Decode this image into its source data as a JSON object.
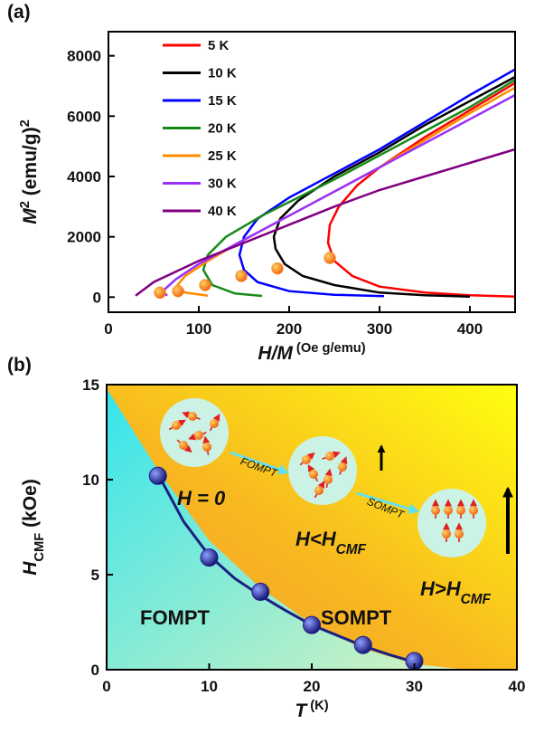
{
  "chart_data": [
    {
      "type": "line",
      "panel_label": "(a)",
      "xlabel": [
        "H/M",
        " (Oe g/emu)"
      ],
      "ylabel": [
        "M",
        "2",
        " (emu/g)",
        "2"
      ],
      "xlim": [
        0,
        450
      ],
      "xticks": [
        0,
        100,
        200,
        300,
        400
      ],
      "ylim": [
        -500,
        8800
      ],
      "yticks": [
        0,
        2000,
        4000,
        6000,
        8000
      ],
      "legend": "upper left",
      "series": [
        {
          "name": "5 K",
          "color": "#ff0000",
          "x": [
            450,
            400,
            350,
            300,
            270,
            250,
            243,
            245,
            255,
            275,
            300,
            350,
            400,
            450
          ],
          "y": [
            20,
            60,
            150,
            350,
            700,
            1200,
            1800,
            2400,
            3000,
            3700,
            4300,
            5300,
            6200,
            7100
          ]
        },
        {
          "name": "10 K",
          "color": "#000000",
          "x": [
            400,
            350,
            300,
            250,
            215,
            195,
            185,
            183,
            190,
            210,
            250,
            300,
            350,
            400,
            450
          ],
          "y": [
            20,
            60,
            150,
            400,
            700,
            1100,
            1600,
            2000,
            2600,
            3200,
            4000,
            4800,
            5700,
            6500,
            7300
          ]
        },
        {
          "name": "15 K",
          "color": "#0000ff",
          "x": [
            305,
            250,
            200,
            165,
            150,
            145,
            150,
            165,
            200,
            250,
            300,
            350,
            400,
            450
          ],
          "y": [
            30,
            80,
            200,
            500,
            900,
            1400,
            2000,
            2600,
            3300,
            4100,
            4900,
            5800,
            6700,
            7550
          ]
        },
        {
          "name": "20 K",
          "color": "#168a16",
          "x": [
            170,
            140,
            115,
            105,
            110,
            130,
            170,
            250,
            300,
            350,
            400,
            450
          ],
          "y": [
            40,
            120,
            400,
            900,
            1400,
            2000,
            2700,
            3900,
            4700,
            5500,
            6300,
            7200
          ]
        },
        {
          "name": "25 K",
          "color": "#ff8c00",
          "x": [
            110,
            85,
            75,
            85,
            110,
            150,
            200,
            250,
            300,
            350,
            400,
            450
          ],
          "y": [
            50,
            150,
            350,
            700,
            1200,
            1900,
            2700,
            3500,
            4300,
            5200,
            6100,
            6950
          ]
        },
        {
          "name": "30 K",
          "color": "#9b30ff",
          "x": [
            65,
            60,
            75,
            100,
            150,
            200,
            250,
            300,
            350,
            400,
            450
          ],
          "y": [
            50,
            200,
            600,
            1100,
            1900,
            2700,
            3500,
            4300,
            5100,
            5900,
            6700
          ]
        },
        {
          "name": "40 K",
          "color": "#800080",
          "x": [
            30,
            50,
            100,
            150,
            200,
            250,
            300,
            350,
            400,
            450
          ],
          "y": [
            50,
            500,
            1200,
            1800,
            2400,
            3000,
            3550,
            4000,
            4450,
            4900
          ]
        }
      ],
      "markers": {
        "color": "#f39020",
        "x": [
          245,
          187,
          147,
          107,
          77,
          57
        ],
        "y": [
          1300,
          950,
          700,
          400,
          200,
          150
        ]
      }
    },
    {
      "type": "scatter",
      "panel_label": "(b)",
      "xlabel": [
        "T",
        " (K)"
      ],
      "ylabel": [
        "H",
        "CMF",
        " (kOe)"
      ],
      "xlim": [
        0,
        40
      ],
      "xticks": [
        0,
        10,
        20,
        30,
        40
      ],
      "ylim": [
        0,
        15
      ],
      "yticks": [
        0,
        5,
        10,
        15
      ],
      "points": {
        "color": "#1c1c8a",
        "x": [
          5,
          10,
          15,
          20,
          25,
          30
        ],
        "y": [
          10.2,
          5.9,
          4.1,
          2.35,
          1.3,
          0.45
        ]
      },
      "fit": {
        "color": "#1a2080",
        "x": [
          5,
          7.5,
          10,
          12.5,
          15,
          17.5,
          20,
          22.5,
          25,
          27.5,
          30
        ],
        "y": [
          10.3,
          7.8,
          6.0,
          4.8,
          3.9,
          3.1,
          2.35,
          1.8,
          1.25,
          0.8,
          0.4
        ]
      },
      "boundary": {
        "x": [
          0,
          5,
          10,
          15,
          20,
          25,
          30,
          35
        ],
        "y": [
          14.8,
          10.5,
          6.8,
          4.3,
          2.4,
          1.1,
          0.3,
          0
        ]
      },
      "regions": [
        "FOMPT",
        "SOMPT"
      ],
      "annotations": {
        "h0": "H = 0",
        "hlt": [
          "H<H",
          "CMF"
        ],
        "hgt": [
          "H>H",
          "CMF"
        ],
        "arrow1": "FOMPT",
        "arrow2": "SOMPT"
      }
    }
  ]
}
